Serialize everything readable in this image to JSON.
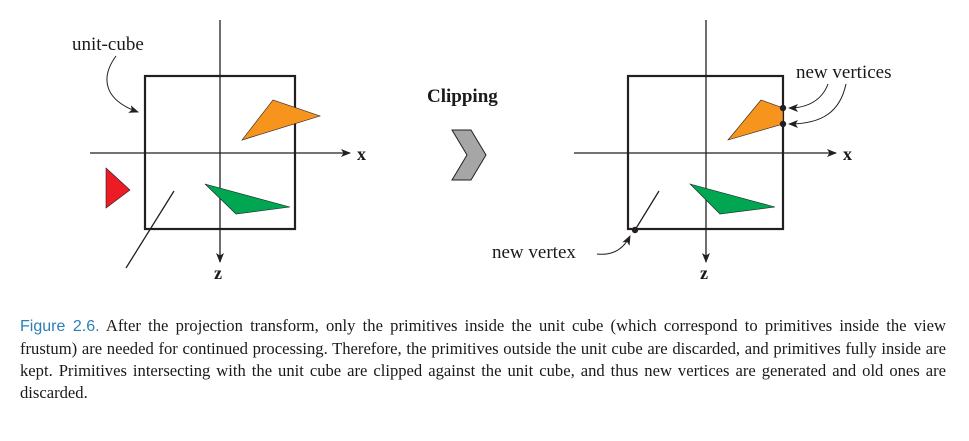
{
  "figure": {
    "unit_cube_label": "unit-cube",
    "clipping_label": "Clipping",
    "x_axis_label": "x",
    "z_axis_label": "z",
    "new_vertices_label": "new vertices",
    "new_vertex_label": "new vertex",
    "colors": {
      "orange": "#f7941d",
      "green": "#00a651",
      "red": "#ed1c24",
      "arrow_fill": "#a6a6a6",
      "line": "#231f20"
    }
  },
  "caption": {
    "label": "Figure 2.6.",
    "text": "After the projection transform, only the primitives inside the unit cube (which correspond to primitives inside the view frustum) are needed for continued processing. Therefore, the primitives outside the unit cube are discarded, and primitives fully inside are kept. Primitives intersecting with the unit cube are clipped against the unit cube, and thus new vertices are generated and old ones are discarded."
  }
}
